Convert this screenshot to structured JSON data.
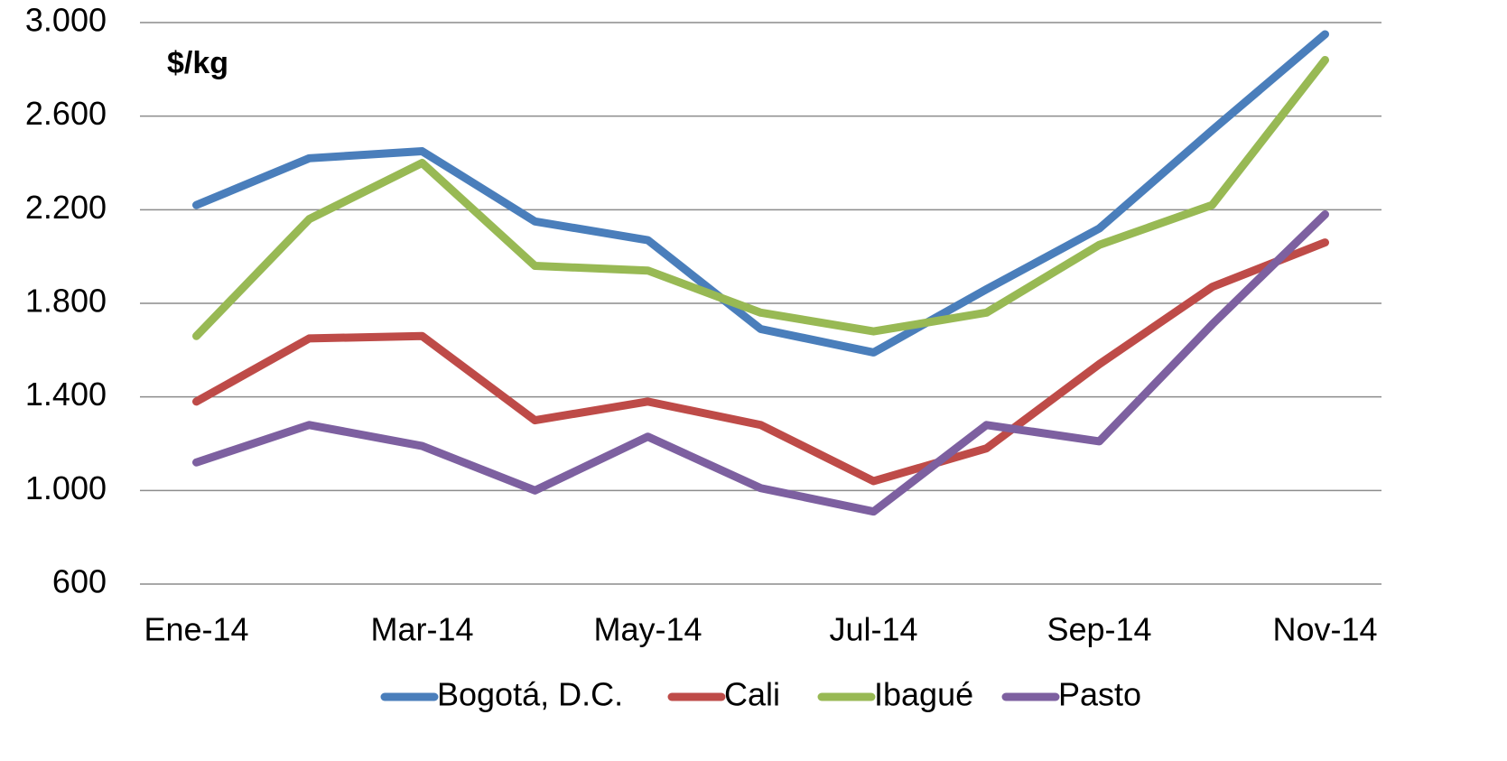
{
  "chart_data": {
    "type": "line",
    "annotation": "$/kg",
    "categories": [
      "Ene-14",
      null,
      "Mar-14",
      null,
      "May-14",
      null,
      "Jul-14",
      null,
      "Sep-14",
      null,
      "Nov-14"
    ],
    "series": [
      {
        "name": "Bogotá, D.C.",
        "color": "#4a7ebb",
        "values": [
          2220,
          2420,
          2450,
          2150,
          2070,
          1690,
          1590,
          1860,
          2120,
          2540,
          2950
        ]
      },
      {
        "name": "Cali",
        "color": "#be4b48",
        "values": [
          1380,
          1650,
          1660,
          1300,
          1380,
          1280,
          1040,
          1180,
          1540,
          1870,
          2060
        ]
      },
      {
        "name": "Ibagué",
        "color": "#98b954",
        "values": [
          1660,
          2160,
          2400,
          1960,
          1940,
          1760,
          1680,
          1760,
          2050,
          2220,
          2840
        ]
      },
      {
        "name": "Pasto",
        "color": "#7d60a0",
        "values": [
          1120,
          1280,
          1190,
          1000,
          1230,
          1010,
          910,
          1280,
          1210,
          1710,
          2180
        ]
      }
    ],
    "ylim": [
      600,
      3000
    ],
    "yticks": [
      600,
      {
        "value": 1000,
        "label": "1.000"
      },
      {
        "value": 1400,
        "label": "1.400"
      },
      {
        "value": 1800,
        "label": "1.800"
      },
      {
        "value": 2200,
        "label": "2.200"
      },
      {
        "value": 2600,
        "label": "2.600"
      },
      {
        "value": 3000,
        "label": "3.000"
      }
    ],
    "grid": true,
    "legend": "bottom"
  }
}
